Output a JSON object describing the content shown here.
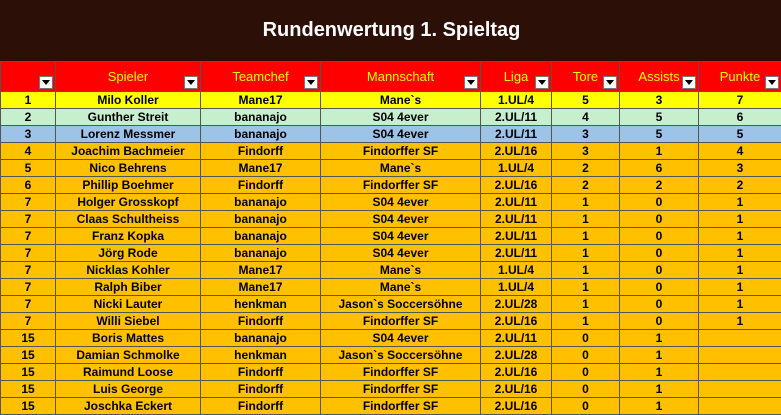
{
  "title": "Rundenwertung 1. Spieltag",
  "columns": [
    "",
    "Spieler",
    "Teamchef",
    "Mannschaft",
    "Liga",
    "Tore",
    "Assists",
    "Punkte"
  ],
  "rows": [
    {
      "rank": "1",
      "spieler": "Milo Koller",
      "teamchef": "Mane17",
      "mannschaft": "Mane`s",
      "liga": "1.UL/4",
      "tore": "5",
      "assists": "3",
      "punkte": "7",
      "style": "yellow"
    },
    {
      "rank": "2",
      "spieler": "Gunther Streit",
      "teamchef": "bananajo",
      "mannschaft": "S04 4ever",
      "liga": "2.UL/11",
      "tore": "4",
      "assists": "5",
      "punkte": "6",
      "style": "green"
    },
    {
      "rank": "3",
      "spieler": "Lorenz Messmer",
      "teamchef": "bananajo",
      "mannschaft": "S04 4ever",
      "liga": "2.UL/11",
      "tore": "3",
      "assists": "5",
      "punkte": "5",
      "style": "blue"
    },
    {
      "rank": "4",
      "spieler": "Joachim Bachmeier",
      "teamchef": "Findorff",
      "mannschaft": "Findorffer SF",
      "liga": "2.UL/16",
      "tore": "3",
      "assists": "1",
      "punkte": "4",
      "style": "orange"
    },
    {
      "rank": "5",
      "spieler": "Nico Behrens",
      "teamchef": "Mane17",
      "mannschaft": "Mane`s",
      "liga": "1.UL/4",
      "tore": "2",
      "assists": "6",
      "punkte": "3",
      "style": "orange"
    },
    {
      "rank": "6",
      "spieler": "Phillip Boehmer",
      "teamchef": "Findorff",
      "mannschaft": "Findorffer SF",
      "liga": "2.UL/16",
      "tore": "2",
      "assists": "2",
      "punkte": "2",
      "style": "orange"
    },
    {
      "rank": "7",
      "spieler": "Holger Grosskopf",
      "teamchef": "bananajo",
      "mannschaft": "S04 4ever",
      "liga": "2.UL/11",
      "tore": "1",
      "assists": "0",
      "punkte": "1",
      "style": "orange"
    },
    {
      "rank": "7",
      "spieler": "Claas Schultheiss",
      "teamchef": "bananajo",
      "mannschaft": "S04 4ever",
      "liga": "2.UL/11",
      "tore": "1",
      "assists": "0",
      "punkte": "1",
      "style": "orange"
    },
    {
      "rank": "7",
      "spieler": "Franz Kopka",
      "teamchef": "bananajo",
      "mannschaft": "S04 4ever",
      "liga": "2.UL/11",
      "tore": "1",
      "assists": "0",
      "punkte": "1",
      "style": "orange"
    },
    {
      "rank": "7",
      "spieler": "Jörg Rode",
      "teamchef": "bananajo",
      "mannschaft": "S04 4ever",
      "liga": "2.UL/11",
      "tore": "1",
      "assists": "0",
      "punkte": "1",
      "style": "orange"
    },
    {
      "rank": "7",
      "spieler": "Nicklas Kohler",
      "teamchef": "Mane17",
      "mannschaft": "Mane`s",
      "liga": "1.UL/4",
      "tore": "1",
      "assists": "0",
      "punkte": "1",
      "style": "orange"
    },
    {
      "rank": "7",
      "spieler": "Ralph Biber",
      "teamchef": "Mane17",
      "mannschaft": "Mane`s",
      "liga": "1.UL/4",
      "tore": "1",
      "assists": "0",
      "punkte": "1",
      "style": "orange"
    },
    {
      "rank": "7",
      "spieler": "Nicki Lauter",
      "teamchef": "henkman",
      "mannschaft": "Jason`s Soccersöhne",
      "liga": "2.UL/28",
      "tore": "1",
      "assists": "0",
      "punkte": "1",
      "style": "orange"
    },
    {
      "rank": "7",
      "spieler": "Willi Siebel",
      "teamchef": "Findorff",
      "mannschaft": "Findorffer SF",
      "liga": "2.UL/16",
      "tore": "1",
      "assists": "0",
      "punkte": "1",
      "style": "orange"
    },
    {
      "rank": "15",
      "spieler": "Boris Mattes",
      "teamchef": "bananajo",
      "mannschaft": "S04 4ever",
      "liga": "2.UL/11",
      "tore": "0",
      "assists": "1",
      "punkte": "",
      "style": "orange"
    },
    {
      "rank": "15",
      "spieler": "Damian Schmolke",
      "teamchef": "henkman",
      "mannschaft": "Jason`s Soccersöhne",
      "liga": "2.UL/28",
      "tore": "0",
      "assists": "1",
      "punkte": "",
      "style": "orange"
    },
    {
      "rank": "15",
      "spieler": "Raimund Loose",
      "teamchef": "Findorff",
      "mannschaft": "Findorffer SF",
      "liga": "2.UL/16",
      "tore": "0",
      "assists": "1",
      "punkte": "",
      "style": "orange"
    },
    {
      "rank": "15",
      "spieler": "Luis George",
      "teamchef": "Findorff",
      "mannschaft": "Findorffer SF",
      "liga": "2.UL/16",
      "tore": "0",
      "assists": "1",
      "punkte": "",
      "style": "orange"
    },
    {
      "rank": "15",
      "spieler": "Joschka Eckert",
      "teamchef": "Findorff",
      "mannschaft": "Findorffer SF",
      "liga": "2.UL/16",
      "tore": "0",
      "assists": "1",
      "punkte": "",
      "style": "orange"
    }
  ],
  "colors": {
    "title_bg": "#2c0f07",
    "header_bg": "#ff0000",
    "header_text": "#ffff00",
    "row_yellow": "#ffff00",
    "row_green": "#c6efce",
    "row_blue": "#9dc3e6",
    "row_orange": "#ffc000"
  },
  "icons": {
    "filter": "dropdown-arrow-icon"
  }
}
